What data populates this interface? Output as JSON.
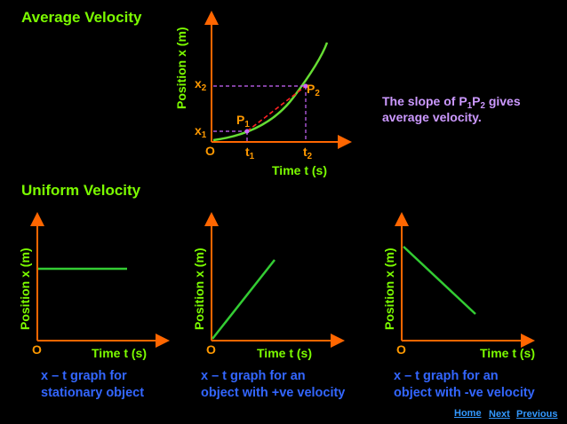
{
  "headings": {
    "average": "Average Velocity",
    "uniform": "Uniform Velocity"
  },
  "top_graph": {
    "y_axis": "Position x (m)",
    "x_axis": "Time t (s)",
    "origin": "O",
    "x2": "x",
    "x2_sub": "2",
    "x1": "x",
    "x1_sub": "1",
    "t1": "t",
    "t1_sub": "1",
    "t2": "t",
    "t2_sub": "2",
    "p1": "P",
    "p1_sub": "1",
    "p2": "P",
    "p2_sub": "2"
  },
  "note": {
    "part1": "The slope of P",
    "sub1": "1",
    "part2": "P",
    "sub2": "2",
    "part3": " gives",
    "line2": "average velocity."
  },
  "graphs": [
    {
      "y_axis": "Position x (m)",
      "x_axis": "Time t (s)",
      "origin": "O",
      "caption_1": "x – t graph for",
      "caption_2": "stationary object"
    },
    {
      "y_axis": "Position x (m)",
      "x_axis": "Time t (s)",
      "origin": "O",
      "caption_1": "x – t graph for an",
      "caption_2": "object with +ve velocity"
    },
    {
      "y_axis": "Position x (m)",
      "x_axis": "Time t (s)",
      "origin": "O",
      "caption_1": "x – t graph for an",
      "caption_2": "object with -ve velocity"
    }
  ],
  "nav": {
    "home": "Home",
    "next": "Next",
    "previous": "Previous"
  },
  "colors": {
    "background": "#000000",
    "axes": "#FF6600",
    "curve": "#66DD33",
    "secant": "#FF2222",
    "guides": "#CC66FF",
    "headings": "#7CFC00",
    "captions": "#3366FF",
    "note": "#CC99FF",
    "labels": "#FF9900"
  }
}
